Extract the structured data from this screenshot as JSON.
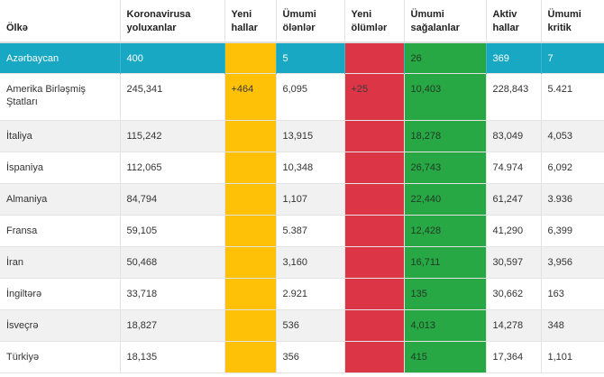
{
  "table": {
    "headers": [
      "Ölkə",
      "Koronavirusa yoluxanlar",
      "Yeni hallar",
      "Ümumi ölənlər",
      "Yeni ölümlər",
      "Ümumi sağalanlar",
      "Aktiv hallar",
      "Ümumi kritik"
    ],
    "rows": [
      [
        "Azərbaycan",
        "400",
        "",
        "5",
        "",
        "26",
        "369",
        "7"
      ],
      [
        "Amerika Birləşmiş Ştatları",
        "245,341",
        "+464",
        "6,095",
        "+25",
        "10,403",
        "228,843",
        "5.421"
      ],
      [
        "İtaliya",
        "115,242",
        "",
        "13,915",
        "",
        "18,278",
        "83,049",
        "4,053"
      ],
      [
        "İspaniya",
        "112,065",
        "",
        "10,348",
        "",
        "26,743",
        "74.974",
        "6,092"
      ],
      [
        "Almaniya",
        "84,794",
        "",
        "1,107",
        "",
        "22,440",
        "61,247",
        "3.936"
      ],
      [
        "Fransa",
        "59,105",
        "",
        "5.387",
        "",
        "12,428",
        "41,290",
        "6,399"
      ],
      [
        "İran",
        "50,468",
        "",
        "3,160",
        "",
        "16,711",
        "30,597",
        "3,956"
      ],
      [
        "İngiltərə",
        "33,718",
        "",
        "2.921",
        "",
        "135",
        "30,662",
        "163"
      ],
      [
        "İsveçrə",
        "18,827",
        "",
        "536",
        "",
        "4,013",
        "14,278",
        "348"
      ],
      [
        "Türkiyə",
        "18,135",
        "",
        "356",
        "",
        "415",
        "17,364",
        "1,101"
      ]
    ]
  },
  "colors": {
    "highlight_row": "#18a8c4",
    "new_cases": "#ffc107",
    "new_deaths": "#dc3545",
    "recovered": "#28a745",
    "alt_row": "#f1f1f1"
  }
}
